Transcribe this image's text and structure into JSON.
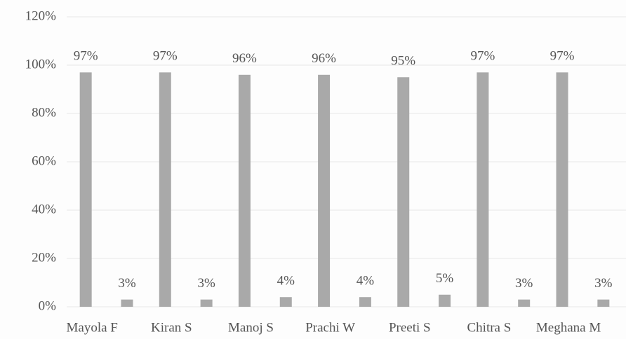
{
  "chart_data": {
    "type": "bar",
    "categories": [
      "Mayola F",
      "Kiran S",
      "Manoj S",
      "Prachi W",
      "Preeti S",
      "Chitra S",
      "Meghana M"
    ],
    "series": [
      {
        "color": "#a9a9a9",
        "values": [
          97,
          97,
          96,
          96,
          95,
          97,
          97
        ],
        "value_labels": [
          "97%",
          "97%",
          "96%",
          "96%",
          "95%",
          "97%",
          "97%"
        ]
      },
      {
        "color": "#a9a9a9",
        "values": [
          3,
          3,
          4,
          4,
          5,
          3,
          3
        ],
        "value_labels": [
          "3%",
          "3%",
          "4%",
          "4%",
          "5%",
          "3%",
          "3%"
        ]
      }
    ],
    "ylim": [
      0,
      120
    ],
    "yticks": [
      {
        "value": 0,
        "label": "0%"
      },
      {
        "value": 20,
        "label": "20%"
      },
      {
        "value": 40,
        "label": "40%"
      },
      {
        "value": 60,
        "label": "60%"
      },
      {
        "value": 80,
        "label": "80%"
      },
      {
        "value": 100,
        "label": "100%"
      },
      {
        "value": 120,
        "label": "120%"
      }
    ],
    "grid": true
  }
}
